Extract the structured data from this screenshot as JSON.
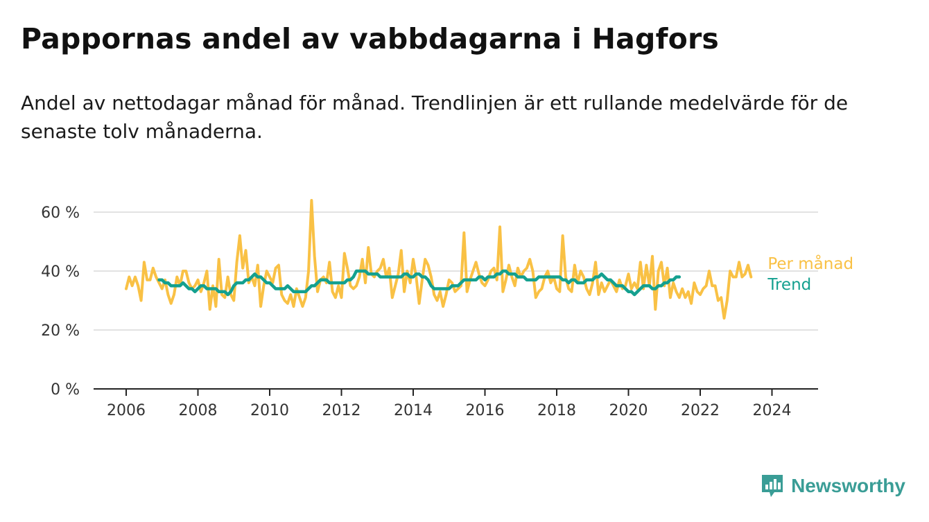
{
  "title": "Pappornas andel av vabbdagarna i Hagfors",
  "subtitle": "Andel av nettodagar månad för månad. Trendlinjen är ett rullande medelvärde för de senaste tolv månaderna.",
  "brand": {
    "name": "Newsworthy",
    "icon": "newsworthy-logo-icon",
    "color": "#3a9d96"
  },
  "chart_data": {
    "type": "line",
    "grid": true,
    "x_ticks": [
      "2006",
      "2008",
      "2010",
      "2012",
      "2014",
      "2016",
      "2018",
      "2020",
      "2022",
      "2024"
    ],
    "y_ticks": [
      "0 %",
      "20 %",
      "40 %",
      "60 %"
    ],
    "ylim": [
      0,
      60
    ],
    "xlim": [
      "2006-01",
      "2024-06"
    ],
    "series": [
      {
        "name": "Per månad",
        "color": "#f9c145",
        "x_start": "2006-01",
        "frequency": "monthly",
        "values": [
          34,
          38,
          35,
          38,
          35,
          30,
          43,
          37,
          37,
          41,
          38,
          36,
          34,
          37,
          32,
          29,
          32,
          38,
          35,
          40,
          40,
          36,
          34,
          35,
          37,
          33,
          36,
          40,
          27,
          35,
          28,
          44,
          32,
          31,
          38,
          32,
          30,
          43,
          52,
          41,
          47,
          36,
          38,
          35,
          42,
          28,
          35,
          40,
          38,
          36,
          41,
          42,
          32,
          30,
          29,
          32,
          28,
          34,
          31,
          28,
          31,
          40,
          64,
          45,
          33,
          37,
          38,
          36,
          43,
          33,
          31,
          35,
          31,
          46,
          41,
          35,
          34,
          35,
          38,
          44,
          36,
          48,
          39,
          38,
          40,
          41,
          44,
          38,
          41,
          31,
          35,
          39,
          47,
          33,
          40,
          36,
          44,
          38,
          29,
          37,
          44,
          42,
          38,
          32,
          30,
          33,
          28,
          32,
          37,
          36,
          33,
          34,
          35,
          53,
          33,
          37,
          40,
          43,
          39,
          36,
          35,
          37,
          40,
          41,
          37,
          55,
          33,
          37,
          42,
          38,
          35,
          41,
          38,
          40,
          41,
          44,
          40,
          31,
          33,
          34,
          38,
          40,
          36,
          38,
          34,
          33,
          52,
          38,
          34,
          33,
          42,
          36,
          40,
          38,
          34,
          32,
          36,
          43,
          32,
          36,
          33,
          35,
          37,
          35,
          33,
          37,
          34,
          35,
          39,
          34,
          36,
          34,
          43,
          34,
          42,
          35,
          45,
          27,
          40,
          43,
          35,
          41,
          31,
          36,
          33,
          31,
          34,
          31,
          33,
          29,
          36,
          33,
          32,
          34,
          35,
          40,
          35,
          35,
          30,
          31,
          24,
          30,
          40,
          38,
          38,
          43,
          38,
          39,
          42,
          38
        ]
      },
      {
        "name": "Trend",
        "color": "#14a08f",
        "x_start": "2006-12",
        "frequency": "monthly",
        "values": [
          37,
          37,
          36,
          36,
          35,
          35,
          35,
          35,
          36,
          35,
          34,
          34,
          33,
          34,
          35,
          35,
          34,
          34,
          34,
          34,
          33,
          33,
          33,
          32,
          33,
          35,
          36,
          36,
          36,
          37,
          37,
          38,
          39,
          38,
          38,
          37,
          36,
          36,
          35,
          34,
          34,
          34,
          34,
          35,
          34,
          33,
          33,
          33,
          33,
          33,
          34,
          35,
          35,
          36,
          37,
          37,
          37,
          36,
          36,
          36,
          36,
          36,
          36,
          37,
          37,
          38,
          40,
          40,
          40,
          40,
          39,
          39,
          39,
          39,
          38,
          38,
          38,
          38,
          38,
          38,
          38,
          38,
          39,
          39,
          38,
          38,
          39,
          39,
          38,
          38,
          37,
          35,
          34,
          34,
          34,
          34,
          34,
          34,
          35,
          35,
          35,
          36,
          37,
          37,
          37,
          37,
          37,
          38,
          38,
          37,
          38,
          38,
          38,
          39,
          39,
          40,
          40,
          39,
          39,
          39,
          38,
          38,
          38,
          37,
          37,
          37,
          37,
          38,
          38,
          38,
          38,
          38,
          38,
          38,
          38,
          37,
          37,
          36,
          37,
          37,
          36,
          36,
          36,
          37,
          37,
          37,
          38,
          38,
          39,
          38,
          37,
          37,
          36,
          35,
          35,
          35,
          34,
          33,
          33,
          32,
          33,
          34,
          35,
          35,
          35,
          34,
          34,
          35,
          35,
          36,
          36,
          37,
          37,
          38,
          38
        ]
      }
    ],
    "legend": {
      "placement": "right-end",
      "entries": [
        "Per månad",
        "Trend"
      ]
    }
  }
}
